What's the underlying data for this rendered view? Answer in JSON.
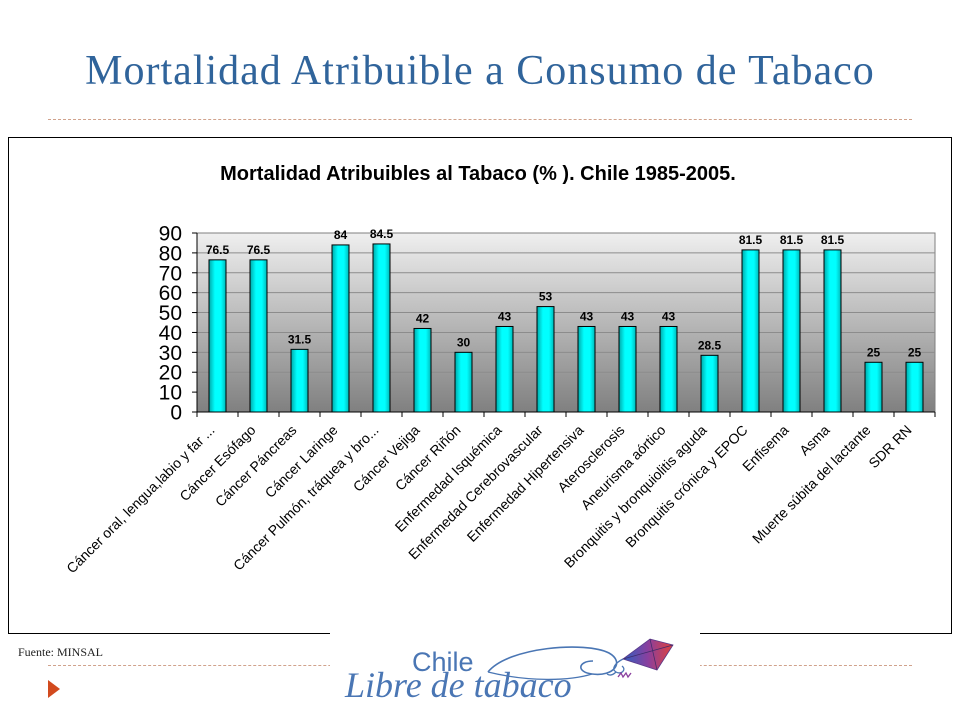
{
  "slide": {
    "title": "Mortalidad Atribuible a Consumo de Tabaco",
    "source_note": "Fuente: MINSAL",
    "logo": {
      "line1": "Chile",
      "line2": "Libre de tabaco"
    }
  },
  "icons": {
    "bullet": "triangle-right-icon",
    "logo_mark": "kite-icon"
  },
  "colors": {
    "title": "#30649b",
    "divider": "#d0a28c",
    "bullet": "#d24a1e",
    "bar_fill": "#00ffff",
    "bar_outline": "#000000",
    "plot_background_top": "#efefef",
    "plot_background_bottom": "#808080",
    "logo_text": "#4a76b4"
  },
  "chart_data": {
    "type": "bar",
    "title": "Mortalidad Atribuibles al Tabaco (% ). Chile 1985-2005.",
    "xlabel": "",
    "ylabel": "",
    "categories": [
      "Cáncer oral, lengua,labio y far ...",
      "Cáncer Esófago",
      "Cáncer Páncreas",
      "Cáncer Laringe",
      "Cáncer Pulmón, tráquea y bro...",
      "Cáncer Vejiga",
      "Cáncer Riñón",
      "Enfermedad Isquémica",
      "Enfermedad Cerebrovascular",
      "Enfermedad Hipertensiva",
      "Aterosclerosis",
      "Aneurisma aórtico",
      "Bronquitis y bronquiolitis aguda",
      "Bronquitis crónica y EPOC",
      "Enfisema",
      "Asma",
      "Muerte súbita del lactante",
      "SDR RN"
    ],
    "values": [
      76.5,
      76.5,
      31.5,
      84,
      84.5,
      42,
      30,
      43,
      53,
      43,
      43,
      43,
      28.5,
      81.5,
      81.5,
      81.5,
      25,
      25
    ],
    "ylim": [
      0,
      90
    ],
    "yticks": [
      0,
      10,
      20,
      30,
      40,
      50,
      60,
      70,
      80,
      90
    ],
    "data_labels": true,
    "grid": true,
    "show_legend": false
  }
}
